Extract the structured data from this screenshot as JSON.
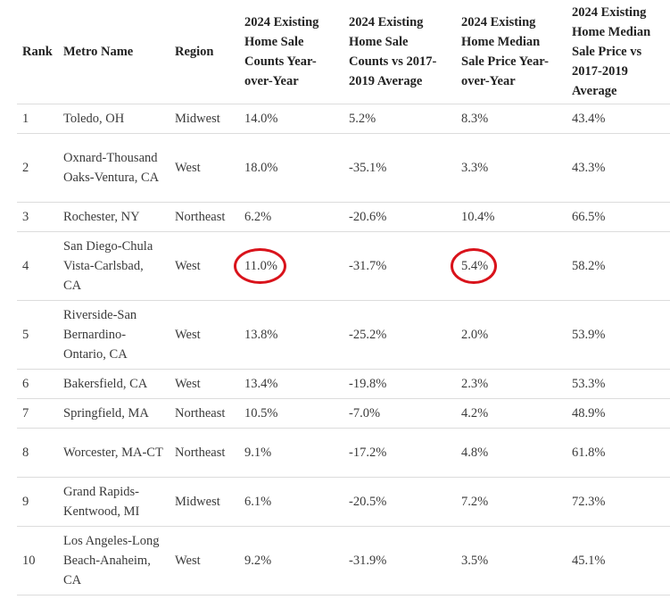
{
  "table": {
    "headers": {
      "rank": "Rank",
      "metro": "Metro Name",
      "region": "Region",
      "sale_counts_yoy": "2024 Existing Home Sale Counts Year-over-Year",
      "sale_counts_vs_avg": "2024 Existing Home Sale Counts vs 2017-2019 Average",
      "median_price_yoy": "2024 Existing Home Median Sale Price Year-over-Year",
      "median_price_vs_avg": "2024 Existing Home Median Sale Price vs 2017-2019 Average"
    },
    "rows": [
      {
        "rank": "1",
        "metro": "Toledo, OH",
        "region": "Midwest",
        "sc_yoy": "14.0%",
        "sc_avg": "5.2%",
        "mp_yoy": "8.3%",
        "mp_avg": "43.4%"
      },
      {
        "rank": "2",
        "metro": "Oxnard-Thousand Oaks-Ventura, CA",
        "region": "West",
        "sc_yoy": "18.0%",
        "sc_avg": "-35.1%",
        "mp_yoy": "3.3%",
        "mp_avg": "43.3%"
      },
      {
        "rank": "3",
        "metro": "Rochester, NY",
        "region": "Northeast",
        "sc_yoy": "6.2%",
        "sc_avg": "-20.6%",
        "mp_yoy": "10.4%",
        "mp_avg": "66.5%"
      },
      {
        "rank": "4",
        "metro": "San Diego-Chula Vista-Carlsbad, CA",
        "region": "West",
        "sc_yoy": "11.0%",
        "sc_avg": "-31.7%",
        "mp_yoy": "5.4%",
        "mp_avg": "58.2%"
      },
      {
        "rank": "5",
        "metro": "Riverside-San Bernardino-Ontario, CA",
        "region": "West",
        "sc_yoy": "13.8%",
        "sc_avg": "-25.2%",
        "mp_yoy": "2.0%",
        "mp_avg": "53.9%"
      },
      {
        "rank": "6",
        "metro": "Bakersfield, CA",
        "region": "West",
        "sc_yoy": "13.4%",
        "sc_avg": "-19.8%",
        "mp_yoy": "2.3%",
        "mp_avg": "53.3%"
      },
      {
        "rank": "7",
        "metro": "Springfield, MA",
        "region": "Northeast",
        "sc_yoy": "10.5%",
        "sc_avg": "-7.0%",
        "mp_yoy": "4.2%",
        "mp_avg": "48.9%"
      },
      {
        "rank": "8",
        "metro": "Worcester, MA-CT",
        "region": "Northeast",
        "sc_yoy": "9.1%",
        "sc_avg": "-17.2%",
        "mp_yoy": "4.8%",
        "mp_avg": "61.8%"
      },
      {
        "rank": "9",
        "metro": "Grand Rapids-Kentwood, MI",
        "region": "Midwest",
        "sc_yoy": "6.1%",
        "sc_avg": "-20.5%",
        "mp_yoy": "7.2%",
        "mp_avg": "72.3%"
      },
      {
        "rank": "10",
        "metro": "Los Angeles-Long Beach-Anaheim, CA",
        "region": "West",
        "sc_yoy": "9.2%",
        "sc_avg": "-31.9%",
        "mp_yoy": "3.5%",
        "mp_avg": "45.1%"
      }
    ]
  },
  "annotations": {
    "circle_color": "#d9131b",
    "circled_cells": [
      "rows.3.sc_yoy",
      "rows.3.mp_yoy"
    ]
  }
}
